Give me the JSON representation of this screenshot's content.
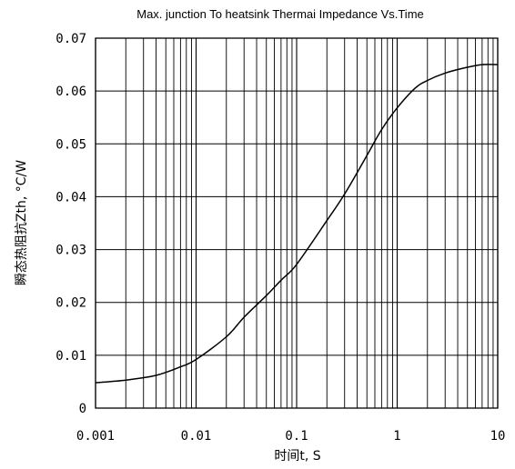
{
  "chart_data": {
    "type": "line",
    "title": "Max. junction To heatsink Thermai Impedance Vs.Time",
    "xlabel": "时间t, S",
    "ylabel": "瞬态热阻抗Zth, °C/W",
    "x_scale": "log",
    "xlim": [
      0.001,
      10
    ],
    "ylim": [
      0,
      0.07
    ],
    "x_ticks": [
      0.001,
      0.01,
      0.1,
      1,
      10
    ],
    "x_tick_labels": [
      "0.001",
      "0.01",
      "0.1",
      "1",
      "10"
    ],
    "y_ticks": [
      0,
      0.01,
      0.02,
      0.03,
      0.04,
      0.05,
      0.06,
      0.07
    ],
    "y_tick_labels": [
      "0",
      "0.01",
      "0.02",
      "0.03",
      "0.04",
      "0.05",
      "0.06",
      "0.07"
    ],
    "grid": true,
    "series": [
      {
        "color": "#000000",
        "x": [
          0.001,
          0.002,
          0.004,
          0.007,
          0.01,
          0.02,
          0.03,
          0.05,
          0.07,
          0.1,
          0.2,
          0.3,
          0.5,
          0.7,
          1,
          1.5,
          2,
          3,
          5,
          7,
          10
        ],
        "y": [
          0.0048,
          0.0053,
          0.0062,
          0.0078,
          0.0092,
          0.0135,
          0.0172,
          0.0213,
          0.0242,
          0.0272,
          0.0355,
          0.0405,
          0.0478,
          0.0527,
          0.0568,
          0.0605,
          0.062,
          0.0634,
          0.0645,
          0.065,
          0.065
        ]
      }
    ]
  }
}
